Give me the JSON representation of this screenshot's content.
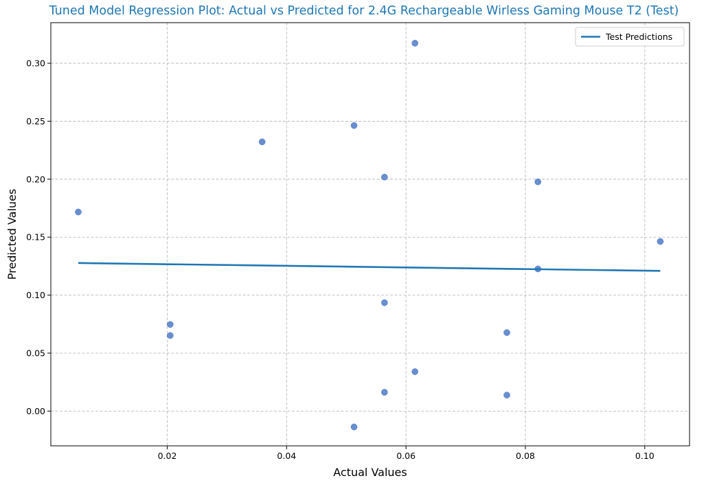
{
  "chart_data": {
    "type": "scatter",
    "title": "Tuned Model Regression Plot: Actual vs Predicted for 2.4G Rechargeable Wirless Gaming Mouse T2 (Test)",
    "xlabel": "Actual Values",
    "ylabel": "Predicted Values",
    "xlim": [
      0.0005,
      0.1075
    ],
    "ylim": [
      -0.03,
      0.335
    ],
    "xticks": [
      0.02,
      0.04,
      0.06,
      0.08,
      0.1
    ],
    "xtick_labels": [
      "0.02",
      "0.04",
      "0.06",
      "0.08",
      "0.10"
    ],
    "yticks": [
      0.0,
      0.05,
      0.1,
      0.15,
      0.2,
      0.25,
      0.3
    ],
    "ytick_labels": [
      "0.00",
      "0.05",
      "0.10",
      "0.15",
      "0.20",
      "0.25",
      "0.30"
    ],
    "grid": true,
    "legend_position": "top-right",
    "points": [
      {
        "x": 0.0051,
        "y": 0.1717
      },
      {
        "x": 0.0205,
        "y": 0.0747
      },
      {
        "x": 0.0205,
        "y": 0.0652
      },
      {
        "x": 0.0359,
        "y": 0.2322
      },
      {
        "x": 0.0513,
        "y": 0.2463
      },
      {
        "x": 0.0513,
        "y": -0.0137
      },
      {
        "x": 0.0564,
        "y": 0.2018
      },
      {
        "x": 0.0564,
        "y": 0.0935
      },
      {
        "x": 0.0564,
        "y": 0.0162
      },
      {
        "x": 0.0615,
        "y": 0.3173
      },
      {
        "x": 0.0615,
        "y": 0.034
      },
      {
        "x": 0.0769,
        "y": 0.0677
      },
      {
        "x": 0.0769,
        "y": 0.0138
      },
      {
        "x": 0.0821,
        "y": 0.1977
      },
      {
        "x": 0.0821,
        "y": 0.1226
      },
      {
        "x": 0.1026,
        "y": 0.1463
      }
    ],
    "series": [
      {
        "name": "Test Predictions",
        "type": "line",
        "x": [
          0.0051,
          0.1026
        ],
        "y": [
          0.1277,
          0.1209
        ]
      }
    ],
    "colors": {
      "points": "#4472c4",
      "line": "#1f77b4",
      "title": "#1f77b4",
      "grid": "#b0b0b0"
    }
  }
}
